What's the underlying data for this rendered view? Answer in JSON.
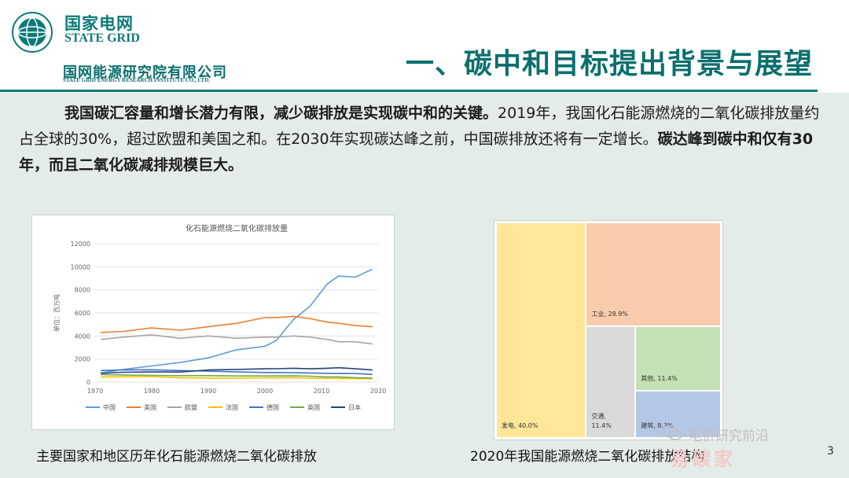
{
  "header": {
    "logo_cn": "国家电网",
    "logo_en": "STATE GRID",
    "institute_cn": "国网能源研究院有限公司",
    "institute_en": "STATE GRID ENERGY RESEARCH INSTITUTE CO., LTD.",
    "title": "一、碳中和目标提出背景与展望",
    "brand_color": "#0a7a78"
  },
  "paragraph": {
    "bold1": "我国碳汇容量和增长潜力有限，减少碳排放是实现碳中和的关键。",
    "normal": "2019年，我国化石能源燃烧的二氧化碳排放量约占全球的30%，超过欧盟和美国之和。在2030年实现碳达峰之前，中国碳排放还将有一定增长。",
    "bold2": "碳达峰到碳中和仅有30年，而且二氧化碳减排规模巨大。"
  },
  "chart_data": [
    {
      "type": "line",
      "title": "化石能源燃烧二氧化碳排放量",
      "ylabel": "单位：百万吨",
      "xlabel": "",
      "ylim": [
        0,
        12000
      ],
      "yticks": [
        0,
        2000,
        4000,
        6000,
        8000,
        10000,
        12000
      ],
      "xlim": [
        1970,
        2020
      ],
      "xticks": [
        1970,
        1980,
        1990,
        2000,
        2010,
        2020
      ],
      "grid": true,
      "legend": "bottom",
      "x": [
        1971,
        1975,
        1980,
        1985,
        1990,
        1995,
        2000,
        2002,
        2005,
        2008,
        2011,
        2013,
        2016,
        2019
      ],
      "series": [
        {
          "name": "中国",
          "color": "#5b9bd5",
          "values": [
            800,
            1100,
            1400,
            1700,
            2100,
            2800,
            3100,
            3600,
            5400,
            6600,
            8500,
            9200,
            9100,
            9800
          ]
        },
        {
          "name": "美国",
          "color": "#ed7d31",
          "values": [
            4300,
            4400,
            4700,
            4500,
            4800,
            5100,
            5600,
            5600,
            5700,
            5500,
            5200,
            5100,
            4900,
            4800
          ]
        },
        {
          "name": "欧盟",
          "color": "#a5a5a5",
          "values": [
            3700,
            3900,
            4100,
            3800,
            4000,
            3800,
            3900,
            3900,
            4000,
            3900,
            3700,
            3500,
            3500,
            3300
          ]
        },
        {
          "name": "法国",
          "color": "#ffc000",
          "values": [
            450,
            460,
            480,
            370,
            350,
            350,
            360,
            360,
            370,
            350,
            320,
            320,
            300,
            290
          ]
        },
        {
          "name": "德国",
          "color": "#4472c4",
          "values": [
            1000,
            1050,
            1070,
            1000,
            950,
            880,
            830,
            830,
            820,
            790,
            760,
            760,
            740,
            660
          ]
        },
        {
          "name": "英国",
          "color": "#70ad47",
          "values": [
            650,
            620,
            580,
            560,
            560,
            530,
            530,
            530,
            540,
            510,
            450,
            450,
            380,
            350
          ]
        },
        {
          "name": "日本",
          "color": "#264478",
          "values": [
            750,
            850,
            880,
            870,
            1050,
            1100,
            1150,
            1160,
            1200,
            1150,
            1200,
            1250,
            1150,
            1050
          ]
        }
      ]
    },
    {
      "type": "treemap",
      "items": [
        {
          "label": "发电, 40.0%",
          "value": 40.0,
          "color": "#ffe699"
        },
        {
          "label": "工业, 28.9%",
          "value": 28.9,
          "color": "#f8cbad"
        },
        {
          "label": "交通,",
          "label2": "11.4%",
          "value": 11.4,
          "color": "#d9d9d9"
        },
        {
          "label": "其他, 11.4%",
          "value": 11.4,
          "color": "#c5e0b4"
        },
        {
          "label": "建筑, 8.3%",
          "value": 8.3,
          "color": "#b4c7e7"
        }
      ]
    }
  ],
  "captions": {
    "left": "主要国家和地区历年化石能源燃烧二氧化碳排放",
    "right": "2020年我国能源燃烧二氧化碳排放结构"
  },
  "page_number": "3",
  "watermark": {
    "top": "电价研究前沿",
    "bottom": "易碳家"
  }
}
